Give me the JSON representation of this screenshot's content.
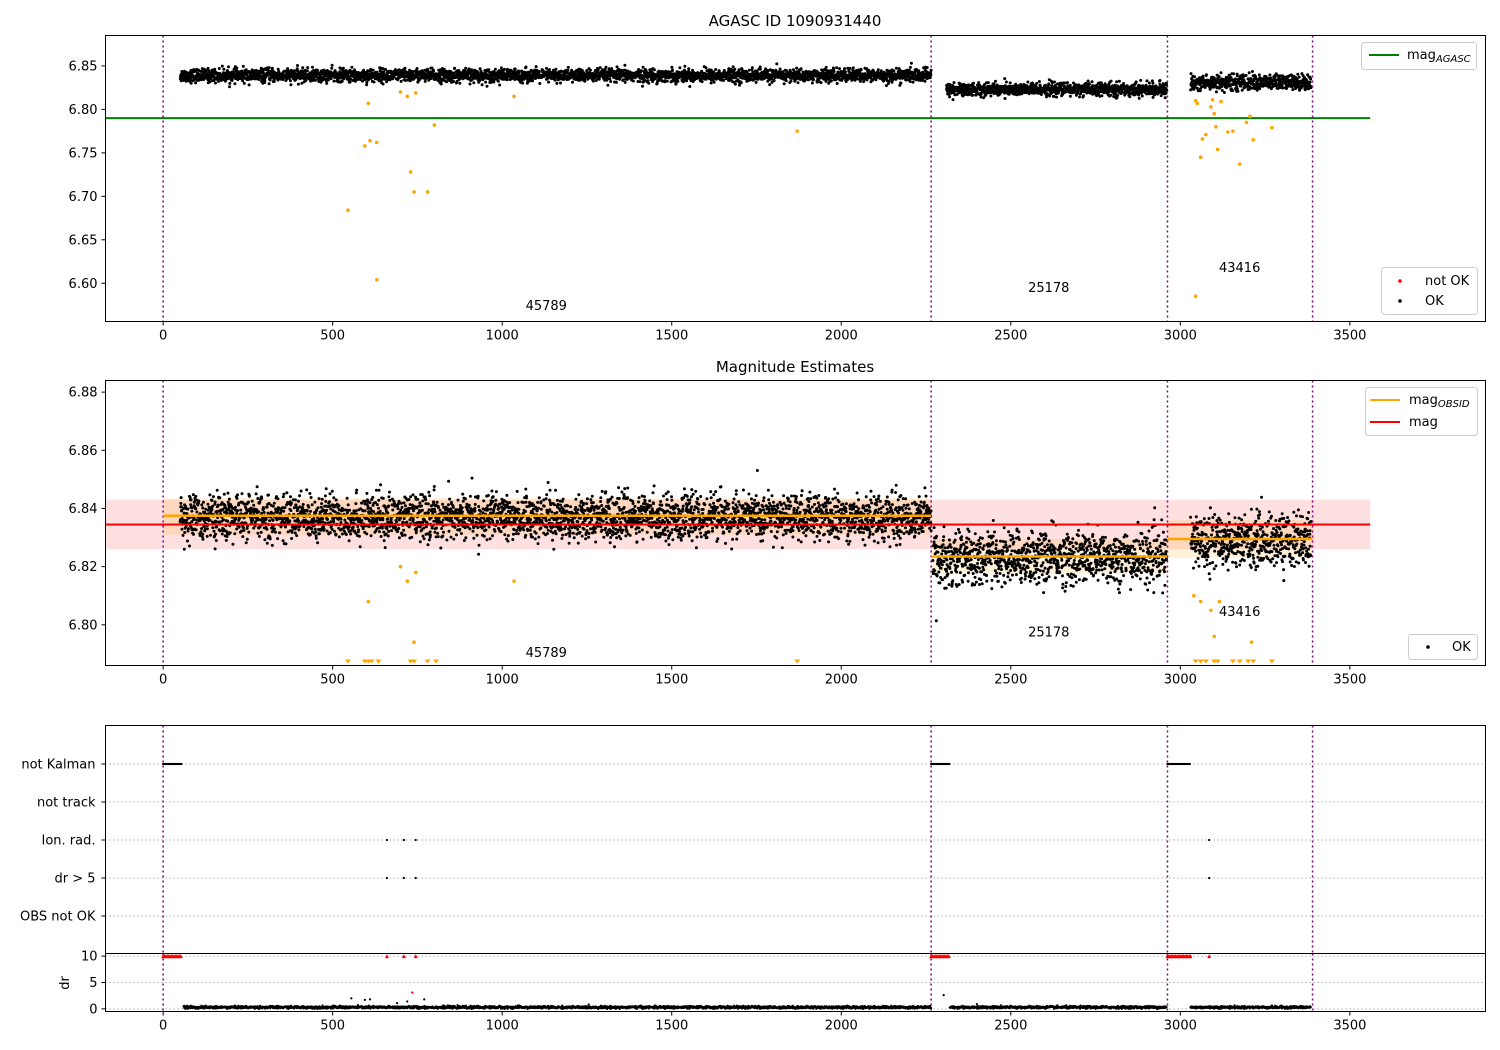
{
  "chart_data": [
    {
      "type": "scatter",
      "title": "AGASC ID 1090931440",
      "xlim": [
        -170,
        3900
      ],
      "ylim": [
        6.556,
        6.885
      ],
      "xticks": [
        0,
        500,
        1000,
        1500,
        2000,
        2500,
        3000,
        3500
      ],
      "yticks": [
        6.6,
        6.65,
        6.7,
        6.75,
        6.8,
        6.85
      ],
      "ytick_labels": [
        "6.60",
        "6.65",
        "6.70",
        "6.75",
        "6.80",
        "6.85"
      ],
      "obs_boundaries": [
        0,
        2265,
        2962,
        3390
      ],
      "obs_labels": [
        {
          "text": "45789",
          "x": 1130,
          "y": 6.569
        },
        {
          "text": "25178",
          "x": 2612,
          "y": 6.59
        },
        {
          "text": "43416",
          "x": 3175,
          "y": 6.613
        }
      ],
      "mag_agasc": {
        "name": "mag",
        "sub": "AGASC",
        "value": 6.79,
        "color": "#008000",
        "x_range": [
          -170,
          3560
        ]
      },
      "ok_series": {
        "name": "OK",
        "color": "#000000",
        "segments": [
          {
            "x": [
              50,
              2265
            ],
            "center": 6.839,
            "spread": 0.005
          },
          {
            "x": [
              2310,
              2960
            ],
            "center": 6.823,
            "spread": 0.005
          },
          {
            "x": [
              3030,
              3385
            ],
            "center": 6.831,
            "spread": 0.006
          }
        ]
      },
      "not_ok_series": {
        "name": "not OK",
        "color": "#ff0000",
        "points": []
      },
      "excluded_points": {
        "color": "#ffa500",
        "x": [
          545,
          595,
          605,
          610,
          630,
          700,
          720,
          730,
          740,
          745,
          780,
          800,
          1035,
          1870,
          3050,
          3060,
          3065,
          3075,
          3090,
          3095,
          3100,
          3105,
          3110,
          3120,
          3140,
          3155,
          3175,
          3195,
          3205,
          3215,
          3270,
          3045
        ],
        "y": [
          6.684,
          6.758,
          6.807,
          6.764,
          6.762,
          6.82,
          6.815,
          6.728,
          6.705,
          6.819,
          6.705,
          6.782,
          6.815,
          6.775,
          6.807,
          6.745,
          6.766,
          6.771,
          6.803,
          6.811,
          6.795,
          6.78,
          6.754,
          6.809,
          6.774,
          6.775,
          6.737,
          6.785,
          6.792,
          6.765,
          6.779,
          6.81
        ]
      },
      "outlier_low": {
        "x": [
          630,
          3045
        ],
        "y": [
          6.604,
          6.585
        ]
      },
      "legends": {
        "lines": [
          {
            "name": "mag",
            "sub": "AGASC"
          }
        ],
        "points": [
          "not OK",
          "OK"
        ]
      }
    },
    {
      "type": "scatter",
      "title": "Magnitude Estimates",
      "xlim": [
        -170,
        3900
      ],
      "ylim": [
        6.786,
        6.884
      ],
      "xticks": [
        0,
        500,
        1000,
        1500,
        2000,
        2500,
        3000,
        3500
      ],
      "yticks": [
        6.8,
        6.82,
        6.84,
        6.86,
        6.88
      ],
      "ytick_labels": [
        "6.80",
        "6.82",
        "6.84",
        "6.86",
        "6.88"
      ],
      "obs_boundaries": [
        0,
        2265,
        2962,
        3390
      ],
      "obs_labels": [
        {
          "text": "45789",
          "x": 1130,
          "y": 6.789
        },
        {
          "text": "25178",
          "x": 2612,
          "y": 6.796
        },
        {
          "text": "43416",
          "x": 3175,
          "y": 6.803
        }
      ],
      "mag": {
        "name": "mag",
        "value": 6.8345,
        "band": [
          6.826,
          6.843
        ],
        "color": "#ff0000",
        "x_range": [
          -170,
          3560
        ]
      },
      "mag_obsid": {
        "name": "mag",
        "sub": "OBSID",
        "color": "#ffa500",
        "segments": [
          {
            "x": [
              0,
              2265
            ],
            "value": 6.8375,
            "band": [
              6.831,
              6.8435
            ]
          },
          {
            "x": [
              2265,
              2962
            ],
            "value": 6.8235,
            "band": [
              6.8175,
              6.8295
            ]
          },
          {
            "x": [
              2962,
              3390
            ],
            "value": 6.8295,
            "band": [
              6.823,
              6.836
            ]
          }
        ]
      },
      "ok_series": {
        "name": "OK",
        "color": "#000000",
        "segments": [
          {
            "x": [
              50,
              2265
            ],
            "center": 6.837,
            "spread": 0.005
          },
          {
            "x": [
              2270,
              2960
            ],
            "center": 6.823,
            "spread": 0.006
          },
          {
            "x": [
              3030,
              3385
            ],
            "center": 6.829,
            "spread": 0.006
          }
        ]
      },
      "excluded_points": {
        "color": "#ffa500",
        "x": [
          605,
          700,
          720,
          740,
          745,
          1035,
          3040,
          3060,
          3090,
          3100,
          3115,
          3210
        ],
        "y": [
          6.808,
          6.82,
          6.815,
          6.794,
          6.818,
          6.815,
          6.81,
          6.808,
          6.805,
          6.796,
          6.808,
          6.794
        ]
      },
      "clipped_markers": {
        "color": "#ffa500",
        "x": [
          545,
          595,
          605,
          615,
          635,
          730,
          740,
          780,
          805,
          1870,
          3045,
          3060,
          3075,
          3100,
          3110,
          3155,
          3175,
          3200,
          3215,
          3270
        ]
      },
      "legends": {
        "lines": [
          {
            "name": "mag",
            "sub": "OBSID"
          },
          {
            "name": "mag",
            "sub": ""
          }
        ],
        "points": [
          "OK"
        ]
      }
    },
    {
      "type": "scatter",
      "title": "",
      "xlim": [
        -170,
        3900
      ],
      "flag_rows": [
        "not Kalman",
        "not track",
        "Ion. rad.",
        "dr > 5",
        "OBS not OK"
      ],
      "obs_boundaries": [
        0,
        2265,
        2962,
        3390
      ],
      "flags": {
        "not Kalman": {
          "x_ranges": [
            [
              0,
              55
            ],
            [
              2265,
              2320
            ],
            [
              2962,
              3030
            ]
          ]
        },
        "not track": {
          "x_ranges": []
        },
        "Ion. rad.": {
          "x": [
            660,
            710,
            745,
            3085
          ]
        },
        "dr > 5": {
          "x": [
            660,
            710,
            745,
            3085
          ]
        },
        "OBS not OK": {
          "x_ranges": []
        }
      }
    },
    {
      "type": "scatter",
      "title": "",
      "ylabel": "dr",
      "xlim": [
        -170,
        3900
      ],
      "ylim": [
        -0.5,
        10.5
      ],
      "xticks": [
        0,
        500,
        1000,
        1500,
        2000,
        2500,
        3000,
        3500
      ],
      "yticks": [
        0,
        5,
        10
      ],
      "ytick_labels": [
        "0",
        "5",
        "10"
      ],
      "obs_boundaries": [
        0,
        2265,
        2962,
        3390
      ],
      "capped_red": {
        "x_ranges": [
          [
            0,
            55
          ],
          [
            2265,
            2320
          ],
          [
            2962,
            3030
          ]
        ],
        "x": [
          660,
          710,
          745,
          3085
        ],
        "value": 10,
        "color": "#ff0000"
      },
      "red_outlier": {
        "x": [
          735
        ],
        "y": [
          3.1
        ]
      },
      "baseline": {
        "value": 0.3,
        "spread": 0.25,
        "segments": [
          [
            60,
            2265
          ],
          [
            2320,
            2960
          ],
          [
            3030,
            3385
          ]
        ]
      },
      "extra_points": {
        "x": [
          555,
          595,
          610,
          690,
          720,
          770,
          2302,
          2400
        ],
        "y": [
          2.0,
          1.7,
          1.8,
          1.1,
          1.4,
          1.8,
          2.6,
          0.9
        ]
      }
    }
  ]
}
